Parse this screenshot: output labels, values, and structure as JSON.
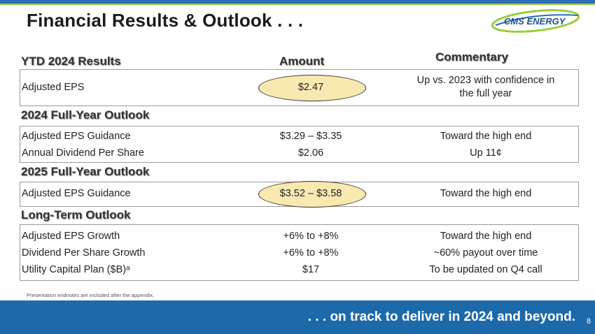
{
  "title": "Financial Results & Outlook . . .",
  "logo_text": "CMS ENERGY",
  "headers": {
    "col1": "YTD 2024 Results",
    "col2": "Amount",
    "col3": "Commentary"
  },
  "ytd": {
    "metric": "Adjusted EPS",
    "amount": "$2.47",
    "commentary_line1": "Up vs. 2023 with confidence in",
    "commentary_line2": "the full year"
  },
  "fy2024": {
    "heading": "2024 Full-Year Outlook",
    "rows": [
      {
        "metric": "Adjusted EPS Guidance",
        "amount": "$3.29 – $3.35",
        "commentary": "Toward the high end"
      },
      {
        "metric": "Annual Dividend Per Share",
        "amount": "$2.06",
        "commentary": "Up 11¢"
      }
    ]
  },
  "fy2025": {
    "heading": "2025 Full-Year Outlook",
    "rows": [
      {
        "metric": "Adjusted EPS Guidance",
        "amount": "$3.52 – $3.58",
        "commentary": "Toward the high end"
      }
    ]
  },
  "long_term": {
    "heading": "Long-Term Outlook",
    "rows": [
      {
        "metric": "Adjusted EPS Growth",
        "amount": "+6% to +8%",
        "commentary": "Toward the high end"
      },
      {
        "metric": "Dividend Per Share Growth",
        "amount": "+6% to +8%",
        "commentary": "~60% payout over time"
      },
      {
        "metric": "Utility Capital Plan ($B)ᵃ",
        "amount": "$17",
        "commentary": "To be updated on Q4 call"
      }
    ]
  },
  "endnote": "Presentation endnotes are included after the appendix.",
  "footer": ". . . on track to deliver in 2024 and beyond.",
  "page_number": "8",
  "colors": {
    "brand_blue": "#1d6aaa",
    "brand_green": "#9acd3c",
    "highlight": "#f9e8b0"
  }
}
